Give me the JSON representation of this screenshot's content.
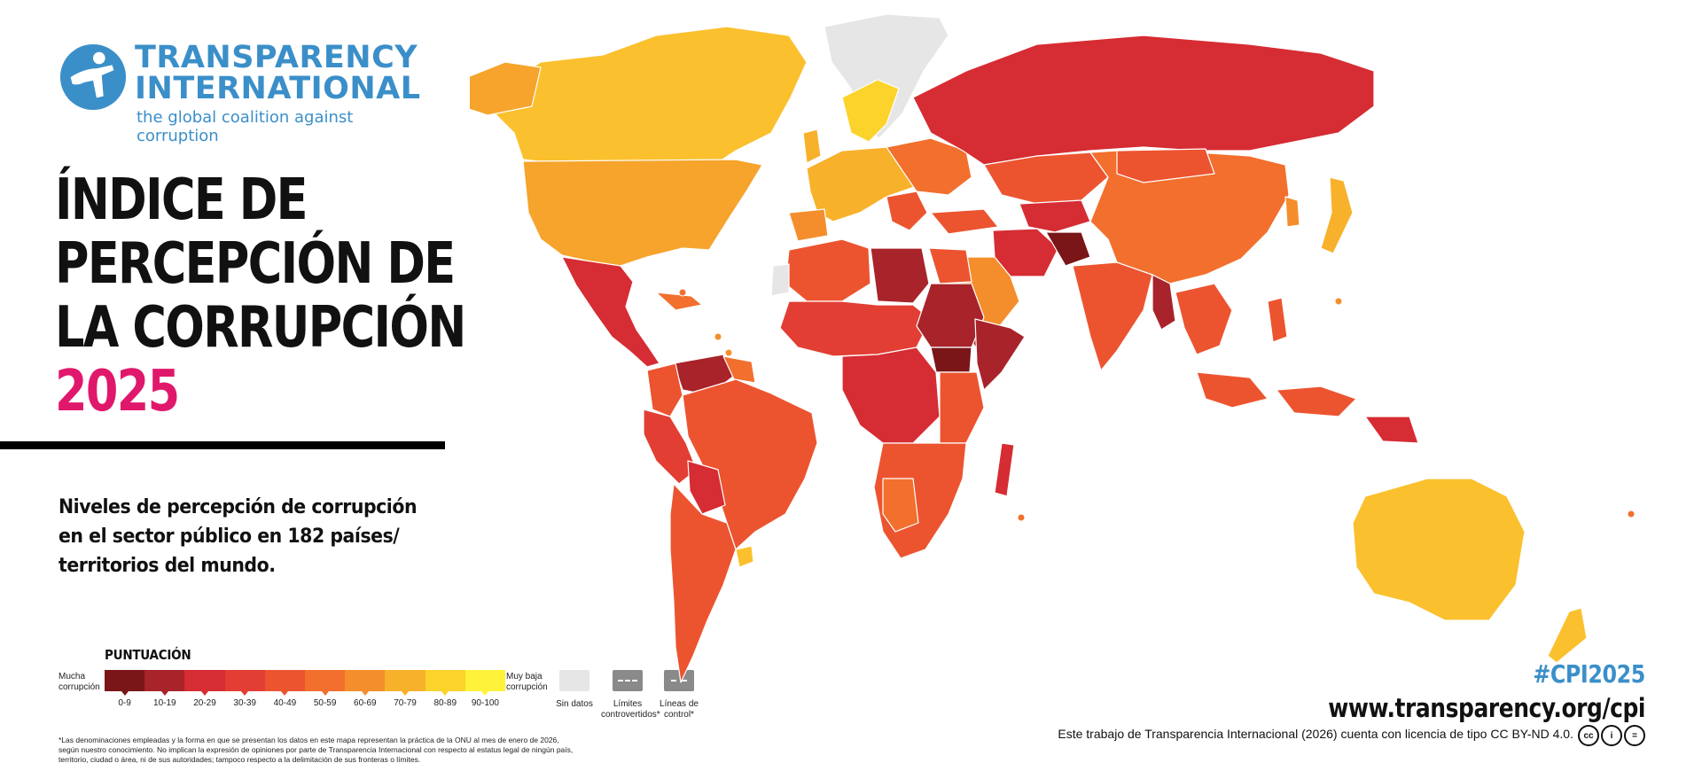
{
  "logo": {
    "line1": "TRANSPARENCY",
    "line2": "INTERNATIONAL",
    "tagline": "the global coalition against corruption"
  },
  "title": {
    "line1": "ÍNDICE DE",
    "line2": "PERCEPCIÓN DE",
    "line3": "LA CORRUPCIÓN",
    "year": "2025"
  },
  "subtitle": {
    "line1": "Niveles de percepción de corrupción",
    "line2": "en el sector público en 182 países/",
    "line3": "territorios del mundo."
  },
  "legend": {
    "title": "PUNTUACIÓN",
    "low_label": "Mucha corrupción",
    "high_label": "Muy baja corrupción",
    "ranges": [
      "0-9",
      "10-19",
      "20-29",
      "30-39",
      "40-49",
      "50-59",
      "60-69",
      "70-79",
      "80-89",
      "90-100"
    ],
    "colors": [
      "#7a1518",
      "#a8232a",
      "#d62c33",
      "#e23e33",
      "#ec5430",
      "#f26f2d",
      "#f48e2c",
      "#f8b12b",
      "#fbd32b",
      "#fff23a"
    ],
    "no_data": "Sin datos",
    "disputed": "Límites controvertidos*",
    "control": "Líneas de control*",
    "no_data_color": "#e6e6e6",
    "boundary_color": "#8a8a8a"
  },
  "footnote": "*Las denominaciones empleadas y la forma en que se presentan los datos en este mapa representan la práctica de la ONU al mes de enero de 2026, según nuestro conocimiento. No implican la expresión de opiniones por parte de Transparencia Internacional con respecto al estatus legal de ningún país, territorio, ciudad o área, ni de sus autoridades; tampoco respecto a la delimitación de sus fronteras o límites.",
  "hashtag": "#CPI2025",
  "url": "www.transparency.org/cpi",
  "license": "Este trabajo de Transparencia Internacional (2026) cuenta con licencia de tipo CC BY-ND 4.0.",
  "cc_icons": [
    "cc",
    "by",
    "nd"
  ],
  "brand_color": "#3b8fc9",
  "accent_color": "#e0186c"
}
